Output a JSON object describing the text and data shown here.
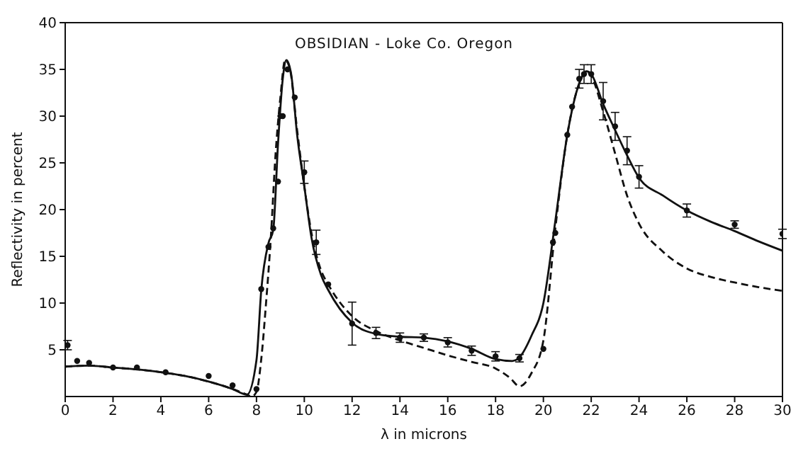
{
  "chart_data": {
    "type": "line",
    "title": "OBSIDIAN - Loke Co. Oregon",
    "xlabel": "λ in microns",
    "ylabel": "Reflectivity in percent",
    "xlim": [
      0,
      30
    ],
    "xticks": [
      0,
      2,
      4,
      6,
      8,
      10,
      12,
      14,
      16,
      18,
      20,
      22,
      24,
      26,
      28,
      30
    ],
    "ylim": [
      0,
      40
    ],
    "yticks": [
      5,
      10,
      15,
      20,
      25,
      30,
      35,
      40
    ],
    "series": [
      {
        "color": "#111111",
        "line_style": "solid",
        "marker": "none",
        "x": [
          0,
          1,
          2,
          3,
          4,
          5,
          6,
          7,
          7.6,
          8,
          8.2,
          8.5,
          8.7,
          8.9,
          9.1,
          9.25,
          9.45,
          9.7,
          10,
          10.3,
          10.7,
          11,
          12,
          13,
          14,
          15,
          16,
          17,
          18,
          18.7,
          19,
          19.5,
          20,
          20.5,
          21,
          21.5,
          21.8,
          22,
          22.5,
          23,
          23.5,
          24,
          25,
          26,
          27,
          28,
          29,
          30
        ],
        "values": [
          3.2,
          3.3,
          3.1,
          2.9,
          2.6,
          2.2,
          1.6,
          0.8,
          0.2,
          3.9,
          11.4,
          16.4,
          17.8,
          27,
          34,
          36,
          34.5,
          28,
          22.5,
          17,
          13,
          11.4,
          7.9,
          6.7,
          6.4,
          6.3,
          5.9,
          5.1,
          4.0,
          3.8,
          4.2,
          6.5,
          10,
          18.8,
          28,
          33.5,
          34.8,
          34.5,
          31.3,
          28.5,
          25.8,
          23.4,
          21.5,
          19.9,
          18.7,
          17.7,
          16.6,
          15.6
        ]
      },
      {
        "color": "#111111",
        "line_style": "dashed",
        "marker": "none",
        "x": [
          0,
          1,
          2,
          3,
          4,
          5,
          6,
          7,
          7.6,
          7.8,
          8,
          8.2,
          8.4,
          8.6,
          8.8,
          9,
          9.2,
          9.4,
          9.7,
          10,
          10.3,
          10.7,
          11,
          12,
          13,
          14,
          15,
          16,
          17,
          18,
          18.6,
          19,
          19.5,
          20,
          20.5,
          21,
          21.5,
          21.8,
          22,
          22.5,
          23,
          23.5,
          24,
          25,
          26,
          27,
          28,
          29,
          30
        ],
        "values": [
          3.2,
          3.3,
          3.1,
          2.9,
          2.6,
          2.2,
          1.6,
          0.8,
          0.2,
          0,
          0.5,
          4,
          10,
          17,
          26,
          32,
          36,
          35,
          28.5,
          22.5,
          17.5,
          13.5,
          12,
          8.6,
          7,
          6,
          5.2,
          4.4,
          3.7,
          3.0,
          2.0,
          1.1,
          2.5,
          6,
          18,
          28,
          33.5,
          34.8,
          34.3,
          30.5,
          26,
          21.5,
          18.5,
          15.5,
          13.7,
          12.8,
          12.2,
          11.7,
          11.3
        ]
      },
      {
        "type": "scatter",
        "color": "#111111",
        "marker": "circle",
        "x": [
          0.1,
          0.5,
          1,
          2,
          3,
          4.2,
          6,
          7,
          8,
          8.2,
          8.5,
          8.7,
          8.9,
          9,
          9.1,
          9.3,
          9.6,
          10,
          10.5,
          11,
          12,
          13,
          14,
          15,
          16,
          17,
          18,
          19,
          20,
          20.4,
          20.5,
          21,
          21.2,
          21.5,
          21.7,
          22,
          22.5,
          23,
          23.5,
          24,
          26,
          28,
          30
        ],
        "values": [
          5.5,
          3.8,
          3.6,
          3.1,
          3.1,
          2.6,
          2.2,
          1.2,
          0.8,
          11.5,
          16,
          18,
          23,
          30,
          30,
          35,
          32,
          24,
          16.5,
          12,
          7.8,
          6.8,
          6.3,
          6.3,
          5.8,
          4.9,
          4.3,
          4.1,
          5.1,
          16.5,
          17.5,
          28,
          31,
          34,
          34.5,
          34.5,
          31.6,
          28.9,
          26.3,
          23.5,
          19.9,
          18.4,
          17.4
        ],
        "errors": [
          0.5,
          null,
          null,
          null,
          null,
          null,
          null,
          null,
          null,
          null,
          null,
          null,
          null,
          null,
          null,
          null,
          null,
          1.2,
          1.3,
          null,
          2.3,
          0.6,
          0.5,
          0.4,
          0.5,
          0.5,
          0.5,
          0.4,
          null,
          null,
          null,
          null,
          null,
          1,
          1,
          1,
          2,
          1.5,
          1.5,
          1.2,
          0.7,
          0.4,
          0.5
        ]
      }
    ]
  }
}
